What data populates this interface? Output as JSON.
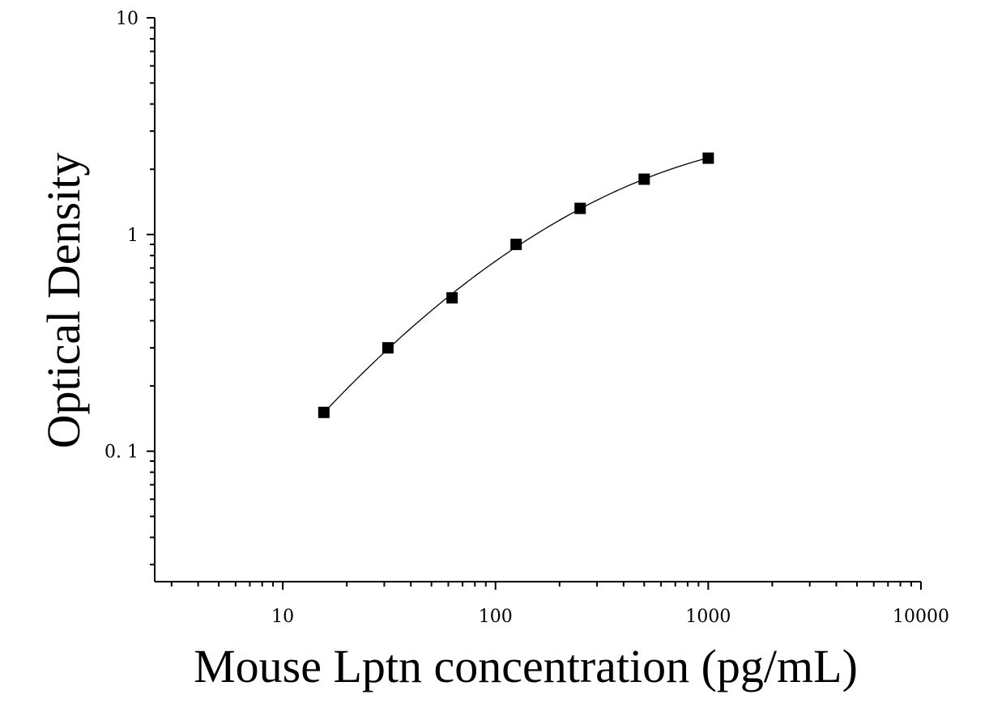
{
  "chart_data": {
    "type": "scatter",
    "title": "",
    "xlabel": "Mouse Lptn concentration (pg/mL)",
    "ylabel": "Optical Density",
    "xscale": "log",
    "yscale": "log",
    "xlim": [
      2.5,
      10000
    ],
    "ylim": [
      0.025,
      10
    ],
    "x_ticks": [
      {
        "value": 10,
        "label": "10"
      },
      {
        "value": 100,
        "label": "100"
      },
      {
        "value": 1000,
        "label": "1000"
      },
      {
        "value": 10000,
        "label": "10000"
      }
    ],
    "y_ticks": [
      {
        "value": 0.1,
        "label": "0. 1"
      },
      {
        "value": 1,
        "label": "1"
      },
      {
        "value": 10,
        "label": "10"
      }
    ],
    "grid": false,
    "series": [
      {
        "x": [
          15.6,
          31.2,
          62.5,
          125,
          250,
          500,
          1000
        ],
        "y": [
          0.151,
          0.3,
          0.51,
          0.9,
          1.32,
          1.8,
          2.25
        ],
        "marker": "square",
        "color": "#000000",
        "fit_curve": true
      }
    ]
  }
}
